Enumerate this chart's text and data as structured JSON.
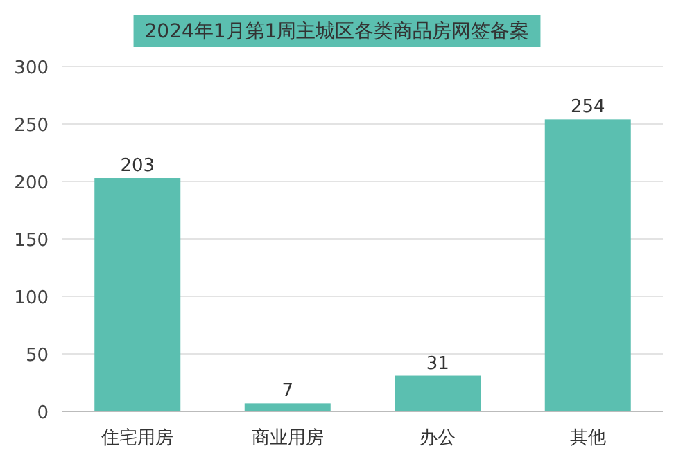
{
  "chart_data": {
    "type": "bar",
    "title": "2024年1月第1周主城区各类商品房网签备案",
    "categories": [
      "住宅用房",
      "商业用房",
      "办公",
      "其他"
    ],
    "values": [
      203,
      7,
      31,
      254
    ],
    "color": "#5bbfb0",
    "ylim": [
      0,
      300
    ],
    "yticks": [
      0,
      50,
      100,
      150,
      200,
      250,
      300
    ],
    "grid": "y",
    "data_labels": true
  }
}
